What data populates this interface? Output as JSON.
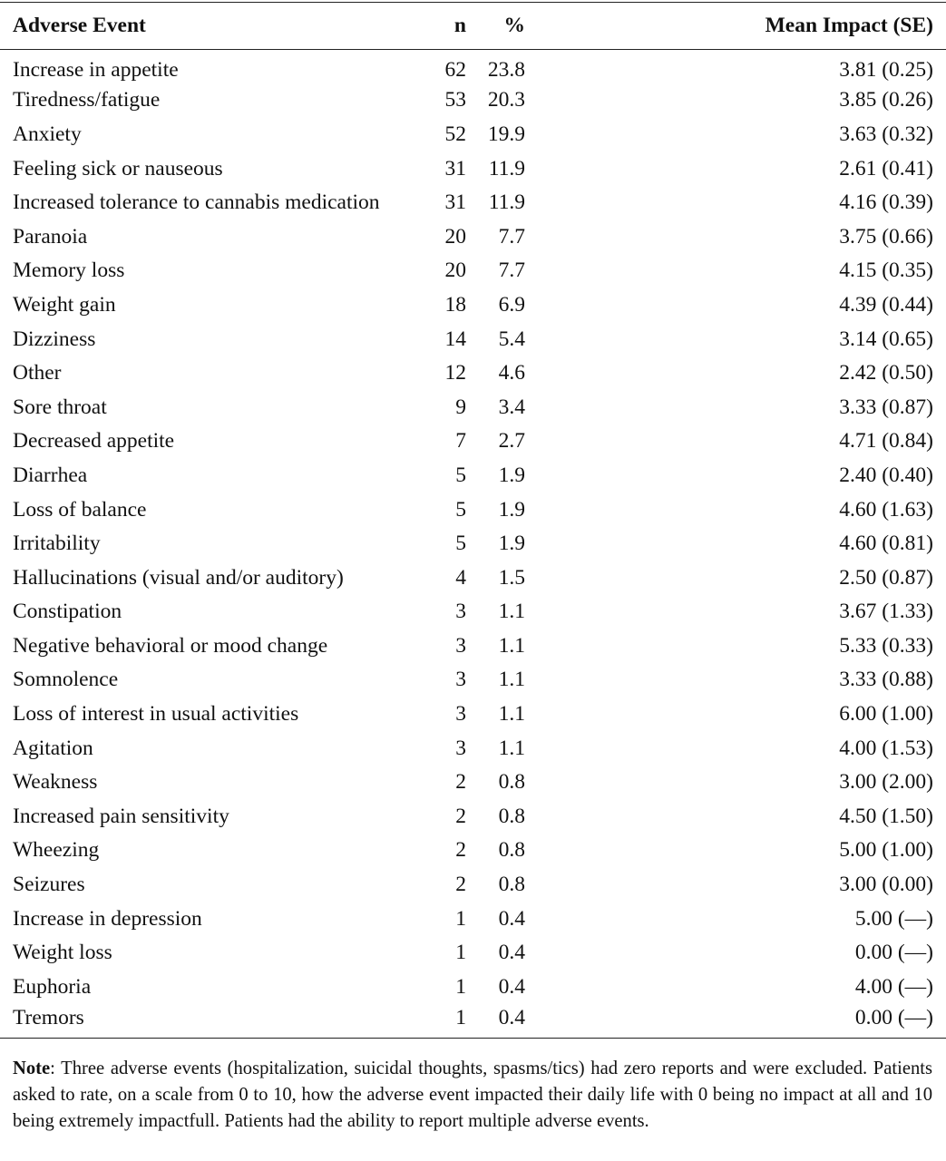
{
  "table": {
    "headers": {
      "event": "Adverse Event",
      "n": "n",
      "pct": "%",
      "impact": "Mean Impact (SE)"
    },
    "rows": [
      {
        "event": "Increase in appetite",
        "n": "62",
        "pct": "23.8",
        "impact": "3.81 (0.25)"
      },
      {
        "event": "Tiredness/fatigue",
        "n": "53",
        "pct": "20.3",
        "impact": "3.85 (0.26)"
      },
      {
        "event": "Anxiety",
        "n": "52",
        "pct": "19.9",
        "impact": "3.63 (0.32)"
      },
      {
        "event": "Feeling sick or nauseous",
        "n": "31",
        "pct": "11.9",
        "impact": "2.61 (0.41)"
      },
      {
        "event": "Increased tolerance to cannabis medication",
        "n": "31",
        "pct": "11.9",
        "impact": "4.16 (0.39)"
      },
      {
        "event": "Paranoia",
        "n": "20",
        "pct": "7.7",
        "impact": "3.75 (0.66)"
      },
      {
        "event": "Memory loss",
        "n": "20",
        "pct": "7.7",
        "impact": "4.15 (0.35)"
      },
      {
        "event": "Weight gain",
        "n": "18",
        "pct": "6.9",
        "impact": "4.39 (0.44)"
      },
      {
        "event": "Dizziness",
        "n": "14",
        "pct": "5.4",
        "impact": "3.14 (0.65)"
      },
      {
        "event": "Other",
        "n": "12",
        "pct": "4.6",
        "impact": "2.42 (0.50)"
      },
      {
        "event": "Sore throat",
        "n": "9",
        "pct": "3.4",
        "impact": "3.33 (0.87)"
      },
      {
        "event": "Decreased appetite",
        "n": "7",
        "pct": "2.7",
        "impact": "4.71 (0.84)"
      },
      {
        "event": "Diarrhea",
        "n": "5",
        "pct": "1.9",
        "impact": "2.40 (0.40)"
      },
      {
        "event": "Loss of balance",
        "n": "5",
        "pct": "1.9",
        "impact": "4.60 (1.63)"
      },
      {
        "event": "Irritability",
        "n": "5",
        "pct": "1.9",
        "impact": "4.60 (0.81)"
      },
      {
        "event": "Hallucinations (visual and/or auditory)",
        "n": "4",
        "pct": "1.5",
        "impact": "2.50 (0.87)"
      },
      {
        "event": "Constipation",
        "n": "3",
        "pct": "1.1",
        "impact": "3.67 (1.33)"
      },
      {
        "event": "Negative behavioral or mood change",
        "n": "3",
        "pct": "1.1",
        "impact": "5.33 (0.33)"
      },
      {
        "event": "Somnolence",
        "n": "3",
        "pct": "1.1",
        "impact": "3.33 (0.88)"
      },
      {
        "event": "Loss of interest in usual activities",
        "n": "3",
        "pct": "1.1",
        "impact": "6.00 (1.00)"
      },
      {
        "event": "Agitation",
        "n": "3",
        "pct": "1.1",
        "impact": "4.00 (1.53)"
      },
      {
        "event": "Weakness",
        "n": "2",
        "pct": "0.8",
        "impact": "3.00 (2.00)"
      },
      {
        "event": "Increased pain sensitivity",
        "n": "2",
        "pct": "0.8",
        "impact": "4.50 (1.50)"
      },
      {
        "event": "Wheezing",
        "n": "2",
        "pct": "0.8",
        "impact": "5.00 (1.00)"
      },
      {
        "event": "Seizures",
        "n": "2",
        "pct": "0.8",
        "impact": "3.00 (0.00)"
      },
      {
        "event": "Increase in depression",
        "n": "1",
        "pct": "0.4",
        "impact": "5.00 (—)"
      },
      {
        "event": "Weight loss",
        "n": "1",
        "pct": "0.4",
        "impact": "0.00 (—)"
      },
      {
        "event": "Euphoria",
        "n": "1",
        "pct": "0.4",
        "impact": "4.00 (—)"
      },
      {
        "event": "Tremors",
        "n": "1",
        "pct": "0.4",
        "impact": "0.00 (—)"
      }
    ]
  },
  "note": {
    "label": "Note",
    "text": ": Three adverse events (hospitalization, suicidal thoughts, spasms/tics) had zero reports and were excluded. Patients asked to rate, on a scale from 0 to 10, how the adverse event impacted their daily life with 0 being no impact at all and 10 being extremely impactfull. Patients had the ability to report multiple adverse events."
  }
}
